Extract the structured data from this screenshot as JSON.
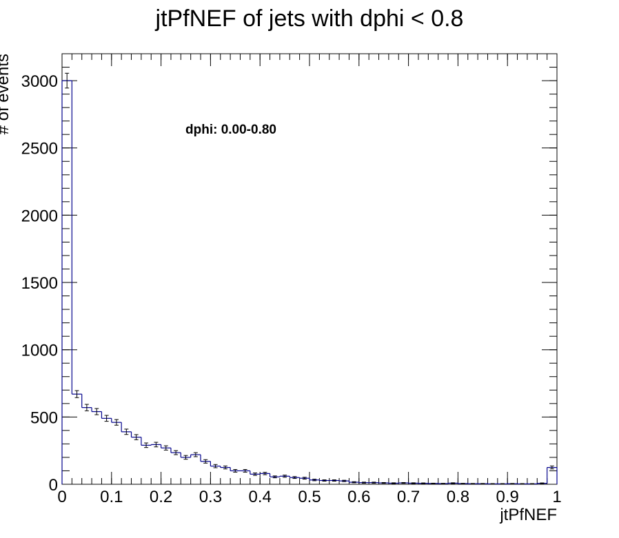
{
  "chart_data": {
    "type": "histogram",
    "title": "jtPfNEF of jets with dphi < 0.8",
    "xlabel": "jtPfNEF",
    "ylabel": "# of events",
    "annotation": "dphi: 0.00-0.80",
    "xlim": [
      0,
      1
    ],
    "ylim": [
      0,
      3200
    ],
    "x_ticks": [
      0,
      0.1,
      0.2,
      0.3,
      0.4,
      0.5,
      0.6,
      0.7,
      0.8,
      0.9,
      1
    ],
    "x_tick_labels": [
      "0",
      "0.1",
      "0.2",
      "0.3",
      "0.4",
      "0.5",
      "0.6",
      "0.7",
      "0.8",
      "0.9",
      "1"
    ],
    "y_ticks": [
      0,
      500,
      1000,
      1500,
      2000,
      2500,
      3000
    ],
    "y_tick_labels": [
      "0",
      "500",
      "1000",
      "1500",
      "2000",
      "2500",
      "3000"
    ],
    "grid": false,
    "line_color": "#00008b",
    "bin_width": 0.02,
    "bin_edges_start": 0,
    "values": [
      3000,
      670,
      570,
      540,
      490,
      460,
      390,
      350,
      290,
      295,
      270,
      235,
      200,
      220,
      170,
      135,
      125,
      100,
      100,
      75,
      80,
      55,
      60,
      50,
      45,
      32,
      28,
      28,
      25,
      15,
      12,
      12,
      10,
      8,
      10,
      8,
      7,
      6,
      5,
      8,
      5,
      4,
      4,
      3,
      3,
      4,
      3,
      3,
      7,
      125
    ],
    "errors": [
      55,
      26,
      24,
      23,
      22,
      21,
      20,
      19,
      17,
      17,
      16,
      15,
      14,
      15,
      13,
      12,
      11,
      10,
      10,
      9,
      9,
      7,
      8,
      7,
      7,
      6,
      5,
      5,
      5,
      4,
      4,
      4,
      3,
      3,
      3,
      3,
      3,
      2,
      2,
      3,
      2,
      2,
      2,
      2,
      2,
      2,
      2,
      2,
      3,
      11
    ]
  }
}
